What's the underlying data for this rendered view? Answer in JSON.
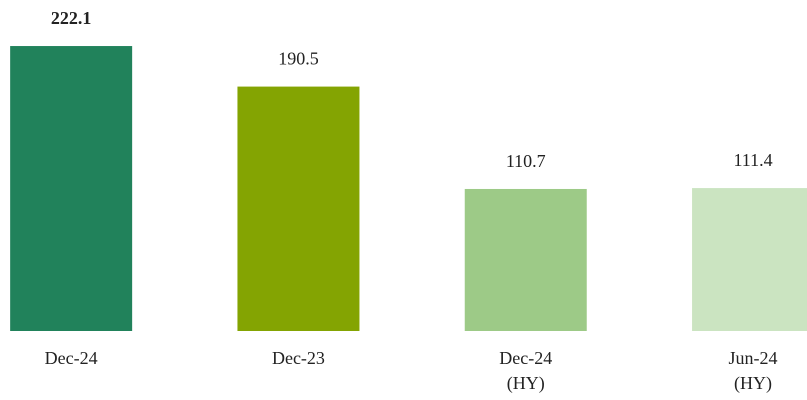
{
  "chart_data": {
    "type": "bar",
    "categories": [
      "Dec-24",
      "Dec-23",
      "Dec-24\n(HY)",
      "Jun-24\n(HY)"
    ],
    "values": [
      222.1,
      190.5,
      110.7,
      111.4
    ],
    "colors": [
      "#21825b",
      "#84a402",
      "#9dca87",
      "#cbe4c1"
    ],
    "value_label_bold": [
      true,
      false,
      false,
      false
    ],
    "ylim": [
      0,
      250
    ]
  }
}
